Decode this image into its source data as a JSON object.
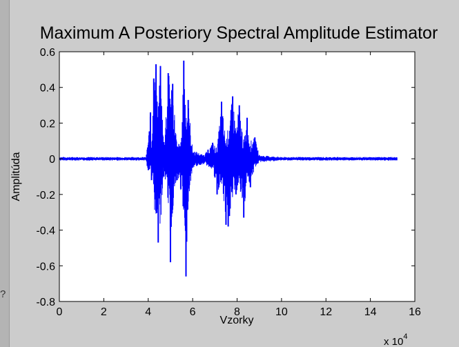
{
  "ui": {
    "edge_glyph": "?"
  },
  "chart_data": {
    "type": "line",
    "title": "Maximum A Posteriory Spectral Amplitude Estimator",
    "xlabel": "Vzorky",
    "ylabel": "Amplitúda",
    "x_multiplier_label": "x 10",
    "x_multiplier_exponent": "4",
    "xlim": [
      0,
      16
    ],
    "ylim": [
      -0.8,
      0.6
    ],
    "x_ticks": [
      0,
      2,
      4,
      6,
      8,
      10,
      12,
      14,
      16
    ],
    "x_tick_labels": [
      "0",
      "2",
      "4",
      "6",
      "8",
      "10",
      "12",
      "14",
      "16"
    ],
    "y_ticks": [
      -0.8,
      -0.6,
      -0.4,
      -0.2,
      0,
      0.2,
      0.4,
      0.6
    ],
    "y_tick_labels": [
      "-0.8",
      "-0.6",
      "-0.4",
      "-0.2",
      "0",
      "0.2",
      "0.4",
      "0.6"
    ],
    "grid": false,
    "legend": "none",
    "line_color": "#0000ff",
    "series": [
      {
        "x": [
          0.0,
          4.0,
          4.1,
          4.15,
          4.25,
          4.35,
          4.45,
          4.55,
          4.7,
          4.9,
          5.0,
          5.1,
          5.3,
          5.6,
          5.7,
          5.8,
          6.0,
          6.5,
          6.9,
          7.1,
          7.3,
          7.5,
          7.6,
          7.8,
          7.95,
          8.1,
          8.3,
          8.45,
          8.6,
          8.8,
          9.0,
          10.0,
          12.0,
          14.0,
          15.2
        ],
        "y": [
          0.0,
          0.0,
          0.26,
          -0.12,
          0.45,
          0.53,
          -0.47,
          0.52,
          -0.1,
          0.48,
          -0.58,
          0.42,
          -0.12,
          0.55,
          -0.66,
          0.33,
          -0.05,
          0.02,
          0.09,
          -0.2,
          0.32,
          -0.37,
          -0.38,
          0.35,
          -0.2,
          0.3,
          -0.33,
          0.23,
          -0.16,
          0.12,
          0.0,
          0.0,
          0.0,
          0.0,
          0.0
        ],
        "envelope": {
          "x": [
            0.0,
            2.0,
            3.9,
            4.0,
            4.1,
            4.15,
            4.25,
            4.35,
            4.45,
            4.55,
            4.7,
            4.9,
            5.0,
            5.1,
            5.3,
            5.5,
            5.6,
            5.7,
            5.8,
            6.0,
            6.5,
            6.9,
            7.1,
            7.3,
            7.5,
            7.6,
            7.8,
            7.95,
            8.1,
            8.3,
            8.45,
            8.6,
            8.8,
            9.0,
            10.0,
            12.0,
            14.0,
            15.2
          ],
          "max": [
            0.01,
            0.01,
            0.01,
            0.12,
            0.26,
            0.1,
            0.45,
            0.53,
            0.3,
            0.52,
            0.08,
            0.48,
            0.46,
            0.42,
            0.07,
            0.12,
            0.55,
            0.3,
            0.33,
            0.05,
            0.02,
            0.09,
            0.06,
            0.32,
            0.1,
            0.18,
            0.35,
            0.18,
            0.3,
            0.1,
            0.23,
            0.1,
            0.12,
            0.02,
            0.01,
            0.01,
            0.01,
            0.01
          ],
          "min": [
            -0.01,
            -0.01,
            -0.01,
            -0.08,
            -0.06,
            -0.12,
            -0.2,
            -0.47,
            -0.2,
            -0.4,
            -0.06,
            -0.25,
            -0.58,
            -0.3,
            -0.1,
            -0.2,
            -0.4,
            -0.66,
            -0.25,
            -0.05,
            -0.03,
            -0.06,
            -0.2,
            -0.15,
            -0.37,
            -0.38,
            -0.25,
            -0.2,
            -0.15,
            -0.33,
            -0.1,
            -0.16,
            -0.05,
            -0.02,
            -0.01,
            -0.01,
            -0.01,
            -0.01
          ]
        }
      }
    ]
  }
}
